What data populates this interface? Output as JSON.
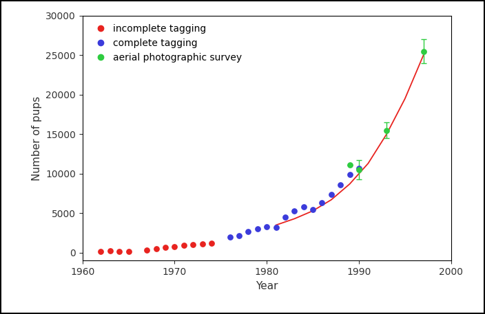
{
  "chart_data": {
    "type": "scatter",
    "x_label": "Year",
    "y_label": "Number of pups",
    "xlim": [
      1960,
      2000
    ],
    "xticks": [
      1960,
      1970,
      1980,
      1990,
      2000
    ],
    "ylim": [
      -1000,
      30000
    ],
    "yticks": [
      0,
      5000,
      10000,
      15000,
      20000,
      25000,
      30000
    ],
    "legend": "upper left",
    "series": [
      {
        "name": "incomplete tagging",
        "type": "scatter",
        "color": "#e8231f",
        "marker": "circle",
        "x": [
          1962,
          1963,
          1964,
          1965,
          1967,
          1968,
          1969,
          1970,
          1971,
          1972,
          1973,
          1974
        ],
        "values": [
          150,
          250,
          200,
          200,
          350,
          500,
          700,
          800,
          900,
          1000,
          1150,
          1200
        ]
      },
      {
        "name": "complete tagging",
        "type": "scatter",
        "color": "#3b3bdb",
        "marker": "circle",
        "x": [
          1976,
          1977,
          1978,
          1979,
          1980,
          1981,
          1982,
          1983,
          1984,
          1985,
          1986,
          1987,
          1988,
          1989,
          1990
        ],
        "values": [
          2000,
          2200,
          2700,
          3000,
          3300,
          3200,
          4500,
          5300,
          5800,
          5500,
          6300,
          7400,
          8600,
          9900,
          10700
        ]
      },
      {
        "name": "aerial photographic survey",
        "type": "scatter",
        "color": "#2ecc40",
        "marker": "circle",
        "x": [
          1989,
          1990,
          1993,
          1997
        ],
        "values": [
          11100,
          10500,
          15500,
          25500
        ],
        "errors": [
          0,
          1200,
          1000,
          1500
        ]
      },
      {
        "type": "line",
        "color": "#e8231f",
        "line_style": "solid",
        "x": [
          1981,
          1983,
          1985,
          1987,
          1989,
          1990,
          1991,
          1993,
          1995,
          1997
        ],
        "values": [
          3500,
          4300,
          5300,
          6700,
          8700,
          10000,
          11300,
          15000,
          19500,
          25000
        ]
      }
    ]
  }
}
